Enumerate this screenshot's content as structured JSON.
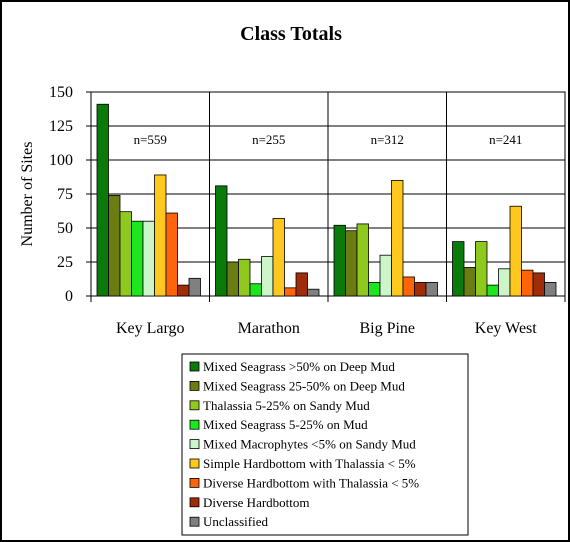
{
  "chart_data": {
    "type": "bar",
    "title": "Class Totals",
    "xlabel": "",
    "ylabel": "Number of Sites",
    "ylim": [
      0,
      150
    ],
    "yticks": [
      0,
      25,
      50,
      75,
      100,
      125,
      150
    ],
    "grid": "horizontal",
    "legend_position": "bottom",
    "categories": [
      "Key Largo",
      "Marathon",
      "Big Pine",
      "Key West"
    ],
    "category_annotations": [
      "n=559",
      "n=255",
      "n=312",
      "n=241"
    ],
    "series": [
      {
        "name": "Mixed Seagrass >50% on Deep Mud",
        "color": "#0a7a0a",
        "values": [
          141,
          81,
          52,
          40
        ]
      },
      {
        "name": "Mixed Seagrass 25-50% on Deep Mud",
        "color": "#6b7d12",
        "values": [
          74,
          25,
          48,
          21
        ]
      },
      {
        "name": "Thalassia 5-25% on Sandy Mud",
        "color": "#8fc81e",
        "values": [
          62,
          27,
          53,
          40
        ]
      },
      {
        "name": "Mixed Seagrass 5-25% on Mud",
        "color": "#1ee61e",
        "values": [
          55,
          9,
          10,
          8
        ]
      },
      {
        "name": "Mixed Macrophytes <5% on Sandy Mud",
        "color": "#ccf5c8",
        "values": [
          55,
          29,
          30,
          20
        ]
      },
      {
        "name": "Simple Hardbottom with Thalassia < 5%",
        "color": "#ffc81e",
        "values": [
          89,
          57,
          85,
          66
        ]
      },
      {
        "name": "Diverse Hardbottom with Thalassia < 5%",
        "color": "#ff640a",
        "values": [
          61,
          6,
          14,
          19
        ]
      },
      {
        "name": "Diverse Hardbottom",
        "color": "#a02d0a",
        "values": [
          8,
          17,
          10,
          17
        ]
      },
      {
        "name": "Unclassified",
        "color": "#808080",
        "values": [
          13,
          5,
          10,
          10
        ]
      }
    ]
  }
}
